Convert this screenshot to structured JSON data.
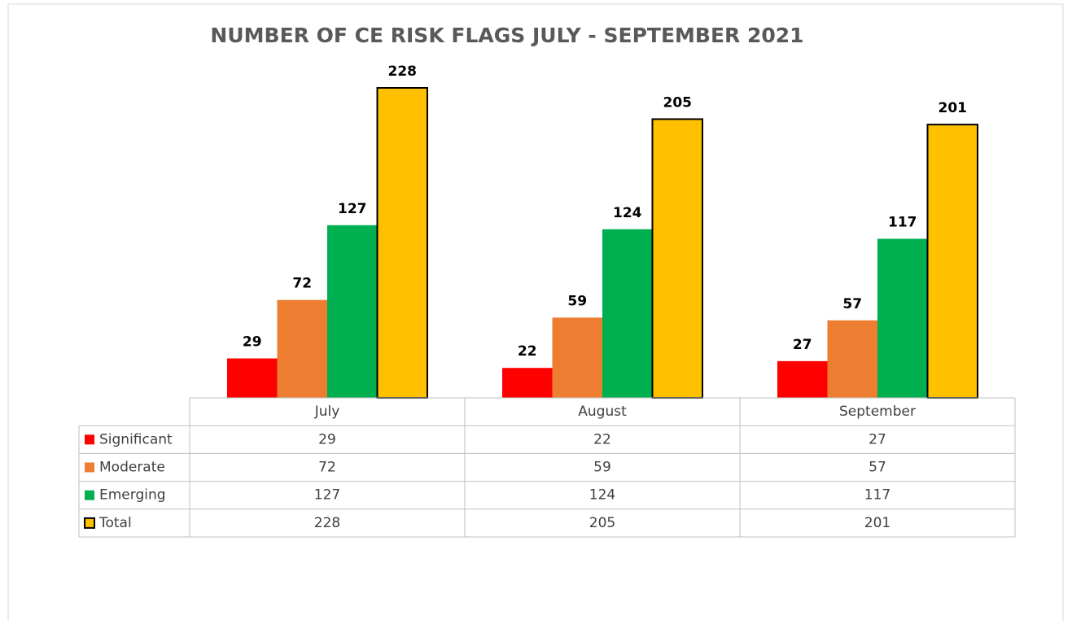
{
  "chart_data": {
    "type": "bar",
    "title": "NUMBER OF CE RISK FLAGS JULY - SEPTEMBER 2021",
    "categories": [
      "July",
      "August",
      "September"
    ],
    "series": [
      {
        "name": "Significant",
        "color": "#ff0000",
        "values": [
          29,
          22,
          27
        ]
      },
      {
        "name": "Moderate",
        "color": "#ed7d31",
        "values": [
          72,
          59,
          57
        ]
      },
      {
        "name": "Emerging",
        "color": "#00b050",
        "values": [
          127,
          124,
          117
        ]
      },
      {
        "name": "Total",
        "color": "#ffc000",
        "values": [
          228,
          205,
          201
        ]
      }
    ],
    "data_table": true
  }
}
